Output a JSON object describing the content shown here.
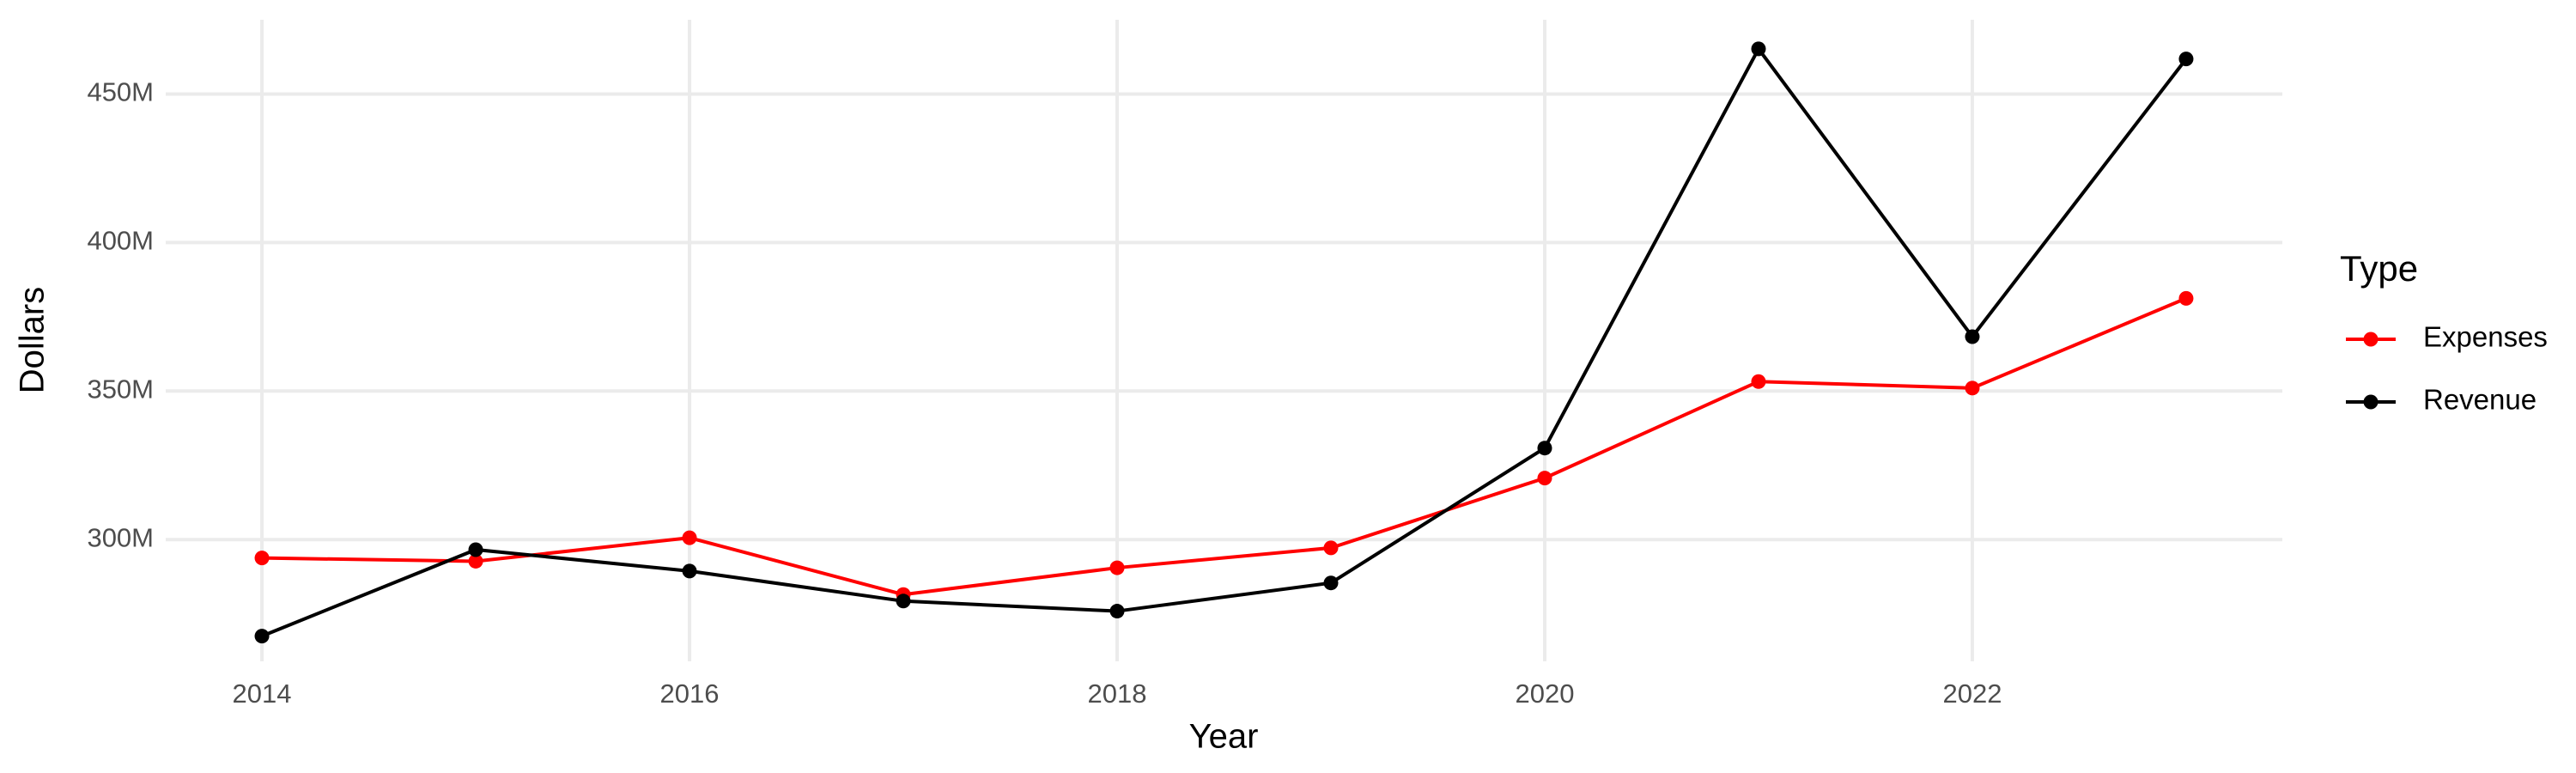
{
  "chart_data": {
    "type": "line",
    "x_label": "Year",
    "y_label": "Dollars",
    "x": [
      2014,
      2015,
      2016,
      2017,
      2018,
      2019,
      2020,
      2021,
      2022,
      2023
    ],
    "series": [
      {
        "name": "Expenses",
        "color": "#ff0000",
        "values": [
          293800000,
          292700000,
          300600000,
          281500000,
          290500000,
          297200000,
          320700000,
          353200000,
          351000000,
          381200000
        ]
      },
      {
        "name": "Revenue",
        "color": "#000000",
        "values": [
          267500000,
          296600000,
          289400000,
          279300000,
          275900000,
          285400000,
          330800000,
          465200000,
          368300000,
          461800000
        ]
      }
    ],
    "xlim": [
      2013.55,
      2023.45
    ],
    "xticks": [
      2014,
      2016,
      2018,
      2020,
      2022
    ],
    "ylim": [
      259000000,
      475000000
    ],
    "yticks": [
      {
        "value": 300000000,
        "label": "300M"
      },
      {
        "value": 350000000,
        "label": "350M"
      },
      {
        "value": 400000000,
        "label": "400M"
      },
      {
        "value": 450000000,
        "label": "450M"
      }
    ],
    "grid": true,
    "legend_title": "Type",
    "legend_position": "right"
  }
}
